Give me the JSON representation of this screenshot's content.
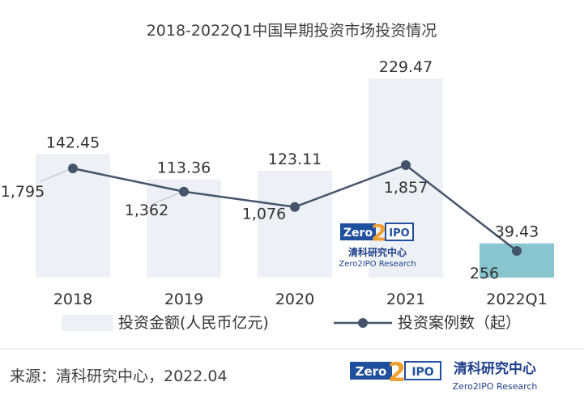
{
  "chart_data": {
    "type": "bar",
    "title": "2018-2022Q1中国早期投资市场投资情况",
    "categories": [
      "2018",
      "2019",
      "2020",
      "2021",
      "2022Q1"
    ],
    "series": [
      {
        "name": "投资金额(人民币亿元)",
        "kind": "bar",
        "values": [
          142.45,
          113.36,
          123.11,
          229.47,
          39.43
        ],
        "labels": [
          "142.45",
          "113.36",
          "123.11",
          "229.47",
          "39.43"
        ]
      },
      {
        "name": "投资案例数（起）",
        "kind": "line",
        "values": [
          1795,
          1362,
          1076,
          1857,
          256
        ],
        "labels": [
          "1,795",
          "1,362",
          "1,076",
          "1,857",
          "256"
        ]
      }
    ],
    "colors": {
      "bar": "#edf0f4",
      "bar_highlight": "#88c6cf",
      "line": "#44546a",
      "marker": "#44546a"
    },
    "grid": false,
    "legend": "bottom"
  },
  "watermark": {
    "zero": "Zero",
    "two": "2",
    "ipo": "IPO",
    "cn": "清科研究中心",
    "en": "Zero2IPO Research"
  },
  "footer": {
    "source": "来源：清科研究中心，2022.04",
    "logo_zero": "Zero",
    "logo_two": "2",
    "logo_ipo": "IPO",
    "logo_cn": "清科研究中心",
    "logo_en": "Zero2IPO Research"
  }
}
